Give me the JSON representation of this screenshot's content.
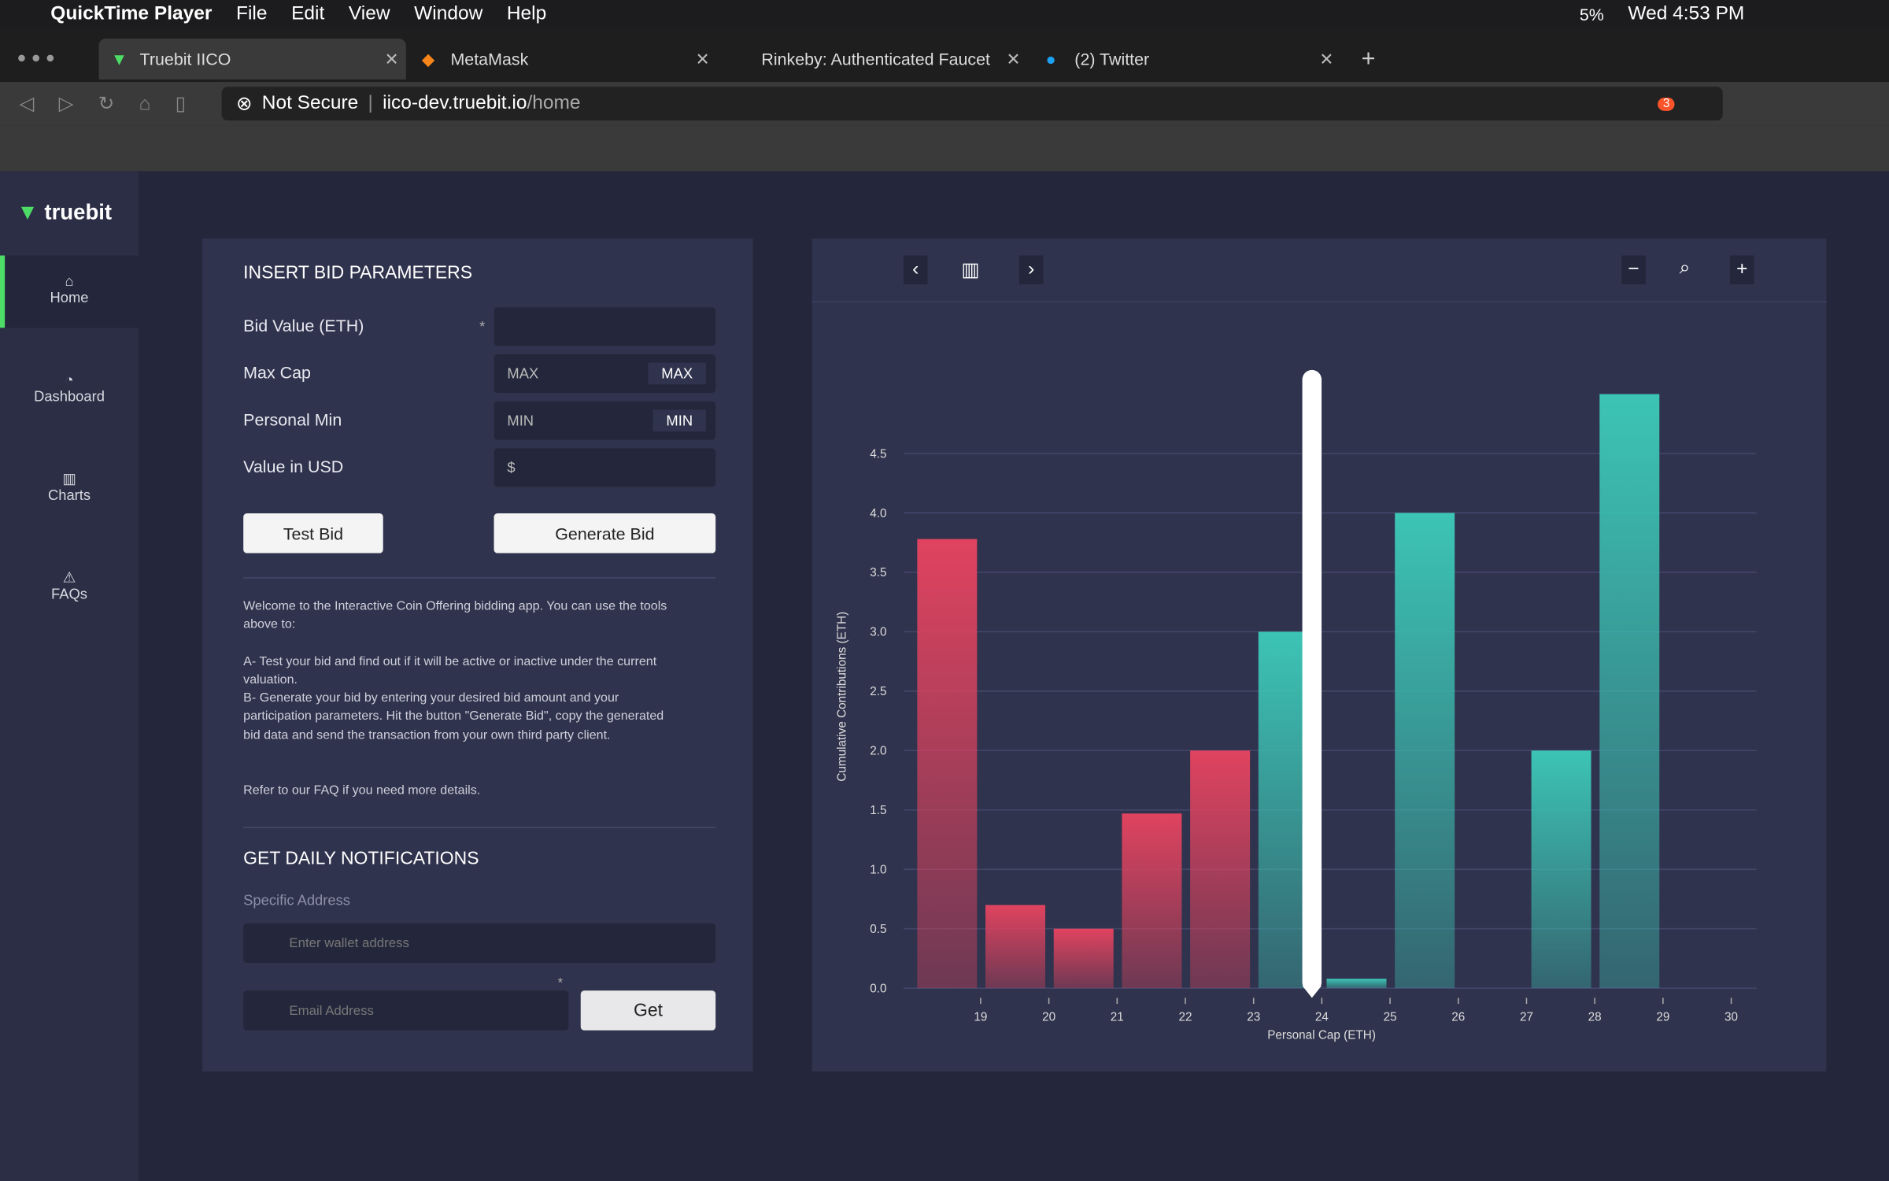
{
  "menubar": {
    "app": "QuickTime Player",
    "items": [
      "File",
      "Edit",
      "View",
      "Window",
      "Help"
    ],
    "battery": "5%",
    "clock": "Wed 4:53 PM"
  },
  "tabs": [
    "Truebit IICO",
    "MetaMask",
    "Rinkeby: Authenticated Faucet",
    "(2) Twitter"
  ],
  "address_bar": {
    "security": "Not Secure",
    "host": "iico-dev.truebit.io",
    "path": "/home",
    "badge": "3"
  },
  "sidebar": {
    "logo": "truebit",
    "nav": [
      "Home",
      "Dashboard",
      "Charts",
      "FAQs"
    ]
  },
  "bid_form": {
    "title": "INSERT BID PARAMETERS",
    "required_mark": "*",
    "fields": [
      {
        "label": "Bid Value (ETH)"
      },
      {
        "label": "Max Cap",
        "placeholder": "MAX",
        "button": "MAX"
      },
      {
        "label": "Personal Min",
        "placeholder": "MIN",
        "button": "MIN"
      },
      {
        "label": "Value in USD",
        "placeholder": "$"
      }
    ],
    "buttons": [
      "Test Bid",
      "Generate Bid"
    ],
    "paragraphs": [
      "Welcome to the Interactive Coin Offering bidding app. You can use the tools above to:",
      "A- Test your bid and find out if it will be active or inactive under the current valuation.",
      "B- Generate your bid by entering your desired bid amount and your participation parameters. Hit the button \"Generate Bid\", copy the generated bid data and send the transaction from your own third party client.",
      "Refer to our FAQ if you need more details."
    ]
  },
  "notifications": {
    "title": "GET DAILY NOTIFICATIONS",
    "address_label": "Specific Address",
    "wallet_placeholder": "Enter wallet address",
    "required_mark": "*",
    "email_placeholder": "Email Address",
    "button": "Get"
  },
  "chart_data": {
    "type": "histogram",
    "y_label": "Cumulative Contributions (ETH)",
    "x_label": "Personal Cap (ETH)",
    "bins": [
      18,
      19,
      20,
      21,
      22,
      23,
      24,
      25,
      26,
      27,
      28,
      29,
      30
    ],
    "series": [
      {
        "color": "#e0435f",
        "values": [
          3.78,
          0.7,
          0.5,
          1.47,
          2.0,
          null,
          null,
          null,
          null,
          null,
          null,
          null
        ]
      },
      {
        "color": "#3cc4b4",
        "values": [
          null,
          null,
          null,
          null,
          null,
          3.0,
          0.08,
          4.0,
          null,
          2.0,
          5.0,
          null
        ]
      }
    ],
    "xlim": [
      17.87,
      30.37
    ],
    "xticks": [
      19,
      20,
      21,
      22,
      23,
      24,
      25,
      26,
      27,
      28,
      29,
      30
    ],
    "ylim": [
      0,
      5
    ],
    "yticks": [
      {
        "value": 0,
        "label": "0.0"
      },
      {
        "value": 0.5,
        "label": "0.5"
      },
      {
        "value": 1,
        "label": "1.0"
      },
      {
        "value": 1.5,
        "label": "1.5"
      },
      {
        "value": 2,
        "label": "2.0"
      },
      {
        "value": 2.5,
        "label": "2.5"
      },
      {
        "value": 3,
        "label": "3.0"
      },
      {
        "value": 3.5,
        "label": "3.5"
      },
      {
        "value": 4,
        "label": "4.0"
      },
      {
        "value": 4.5,
        "label": "4.5"
      }
    ],
    "grid": true
  }
}
